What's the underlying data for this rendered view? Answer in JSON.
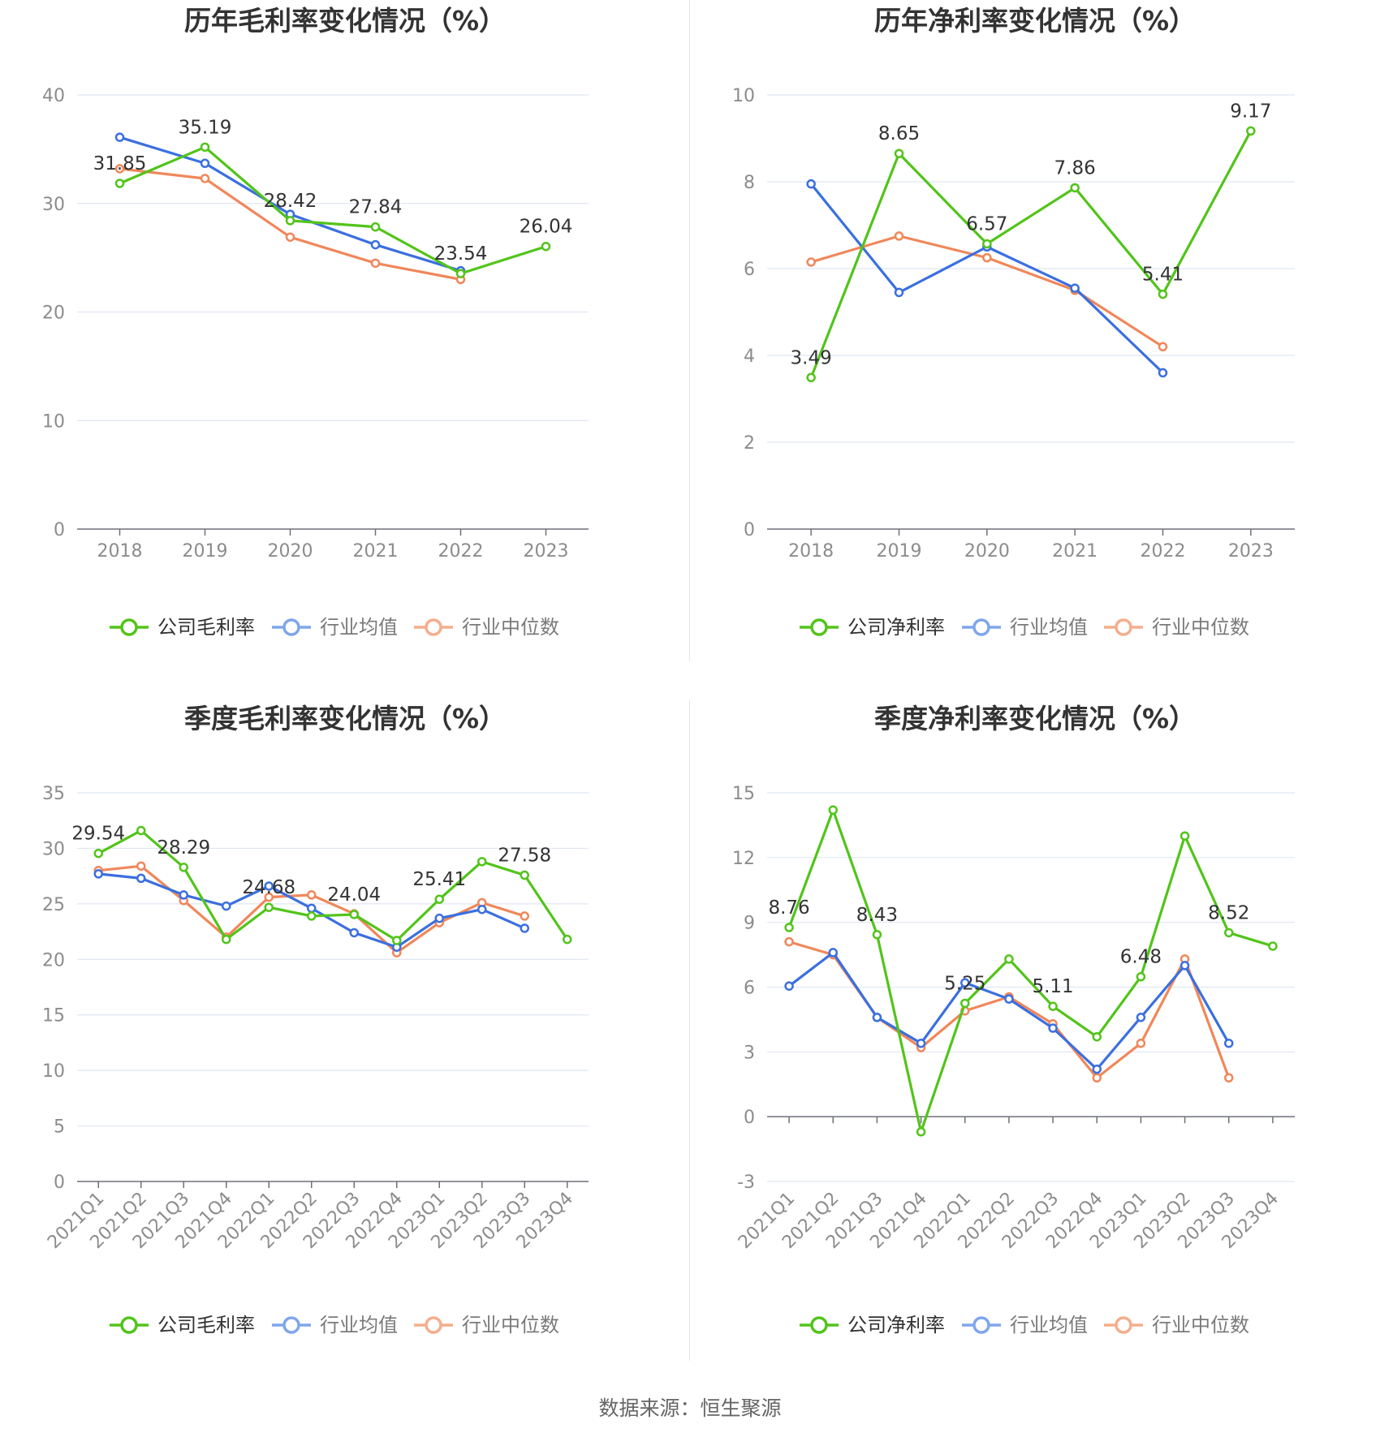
{
  "source": "数据来源：恒生聚源",
  "colors": {
    "company": "#52c41a",
    "industry_avg": "#3b6fe0",
    "industry_median": "#f0875a"
  },
  "chart_data": [
    {
      "type": "line",
      "title": "历年毛利率变化情况（%）",
      "categories": [
        "2018",
        "2019",
        "2020",
        "2021",
        "2022",
        "2023"
      ],
      "ylim": [
        0,
        40
      ],
      "yticks": [
        0,
        10,
        20,
        30,
        40
      ],
      "grid": true,
      "legend": "bottom",
      "series": [
        {
          "name": "公司毛利率",
          "values": [
            31.85,
            35.19,
            28.42,
            27.84,
            23.54,
            26.04
          ],
          "labels": [
            "31.85",
            "35.19",
            "28.42",
            "27.84",
            "23.54",
            "26.04"
          ]
        },
        {
          "name": "行业均值",
          "values": [
            36.1,
            33.7,
            29.0,
            26.2,
            23.8,
            null
          ]
        },
        {
          "name": "行业中位数",
          "values": [
            33.2,
            32.3,
            26.9,
            24.5,
            23.0,
            null
          ]
        }
      ]
    },
    {
      "type": "line",
      "title": "历年净利率变化情况（%）",
      "categories": [
        "2018",
        "2019",
        "2020",
        "2021",
        "2022",
        "2023"
      ],
      "ylim": [
        0,
        10
      ],
      "yticks": [
        0,
        2,
        4,
        6,
        8,
        10
      ],
      "grid": true,
      "legend": "bottom",
      "series": [
        {
          "name": "公司净利率",
          "values": [
            3.49,
            8.65,
            6.57,
            7.86,
            5.41,
            9.17
          ],
          "labels": [
            "3.49",
            "8.65",
            "6.57",
            "7.86",
            "5.41",
            "9.17"
          ]
        },
        {
          "name": "行业均值",
          "values": [
            7.95,
            5.45,
            6.5,
            5.55,
            3.6,
            null
          ]
        },
        {
          "name": "行业中位数",
          "values": [
            6.15,
            6.75,
            6.25,
            5.5,
            4.2,
            null
          ]
        }
      ]
    },
    {
      "type": "line",
      "title": "季度毛利率变化情况（%）",
      "categories": [
        "2021Q1",
        "2021Q2",
        "2021Q3",
        "2021Q4",
        "2022Q1",
        "2022Q2",
        "2022Q3",
        "2022Q4",
        "2023Q1",
        "2023Q2",
        "2023Q3",
        "2023Q4"
      ],
      "ylim": [
        0,
        35
      ],
      "yticks": [
        0,
        5,
        10,
        15,
        20,
        25,
        30,
        35
      ],
      "grid": true,
      "legend": "bottom",
      "series": [
        {
          "name": "公司毛利率",
          "values": [
            29.54,
            31.6,
            28.29,
            21.8,
            24.68,
            23.9,
            24.04,
            21.7,
            25.41,
            28.8,
            27.58,
            21.8
          ],
          "labels": [
            "29.54",
            "",
            "28.29",
            "",
            "24.68",
            "",
            "24.04",
            "",
            "25.41",
            "",
            "27.58",
            ""
          ]
        },
        {
          "name": "行业均值",
          "values": [
            27.7,
            27.3,
            25.8,
            24.8,
            26.6,
            24.6,
            22.4,
            21.1,
            23.7,
            24.5,
            22.8,
            null
          ]
        },
        {
          "name": "行业中位数",
          "values": [
            28.0,
            28.4,
            25.3,
            22.0,
            25.6,
            25.8,
            24.1,
            20.6,
            23.3,
            25.1,
            23.9,
            null
          ]
        }
      ]
    },
    {
      "type": "line",
      "title": "季度净利率变化情况（%）",
      "categories": [
        "2021Q1",
        "2021Q2",
        "2021Q3",
        "2021Q4",
        "2022Q1",
        "2022Q2",
        "2022Q3",
        "2022Q4",
        "2023Q1",
        "2023Q2",
        "2023Q3",
        "2023Q4"
      ],
      "ylim": [
        -3,
        15
      ],
      "yticks": [
        -3,
        0,
        3,
        6,
        9,
        12,
        15
      ],
      "grid": true,
      "legend": "bottom",
      "series": [
        {
          "name": "公司净利率",
          "values": [
            8.76,
            14.2,
            8.43,
            -0.7,
            5.25,
            7.3,
            5.11,
            3.7,
            6.48,
            13.0,
            8.52,
            7.9
          ],
          "labels": [
            "8.76",
            "",
            "8.43",
            "",
            "5.25",
            "",
            "5.11",
            "",
            "6.48",
            "",
            "8.52",
            ""
          ]
        },
        {
          "name": "行业均值",
          "values": [
            6.05,
            7.6,
            4.6,
            3.4,
            6.2,
            5.45,
            4.1,
            2.2,
            4.6,
            7.0,
            3.4,
            null
          ]
        },
        {
          "name": "行业中位数",
          "values": [
            8.1,
            7.5,
            4.6,
            3.2,
            4.9,
            5.55,
            4.3,
            1.8,
            3.4,
            7.3,
            1.8,
            null
          ]
        }
      ]
    }
  ]
}
